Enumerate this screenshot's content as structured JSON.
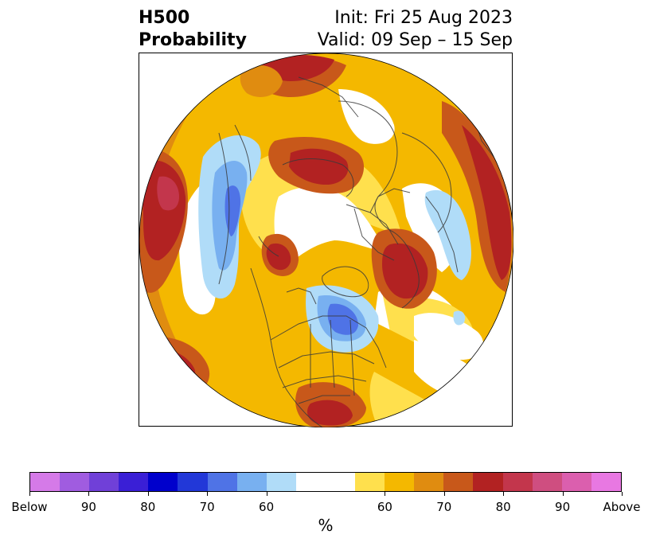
{
  "title": {
    "left_line1": "H500",
    "left_line2": "Probability",
    "right_line1": "Init: Fri 25 Aug 2023",
    "right_line2": "Valid: 09 Sep – 15 Sep"
  },
  "colorbar": {
    "segments": [
      "#d57ae8",
      "#a05ce0",
      "#7040d8",
      "#3a1fd6",
      "#0000cc",
      "#2238d8",
      "#4f73e6",
      "#78b0f0",
      "#b0dcf8",
      "#ffffff",
      "#ffffff",
      "#ffe04d",
      "#f4b800",
      "#e08c10",
      "#c8581a",
      "#b22222",
      "#c3364c",
      "#cf4e80",
      "#db5fae",
      "#e878e2"
    ],
    "labels": [
      "Below",
      "90",
      "80",
      "70",
      "60",
      "60",
      "70",
      "80",
      "90",
      "Above"
    ],
    "unit": "%"
  },
  "map": {
    "projection": "north-polar-stereographic",
    "region": "Northern Hemisphere",
    "colors": {
      "above_low": "#ffe04d",
      "above_mid": "#f4b800",
      "above_60": "#e08c10",
      "above_70": "#c8581a",
      "above_80": "#b22222",
      "above_90": "#c3364c",
      "below_low": "#b0dcf8",
      "below_60": "#78b0f0",
      "below_70": "#4f73e6"
    }
  }
}
